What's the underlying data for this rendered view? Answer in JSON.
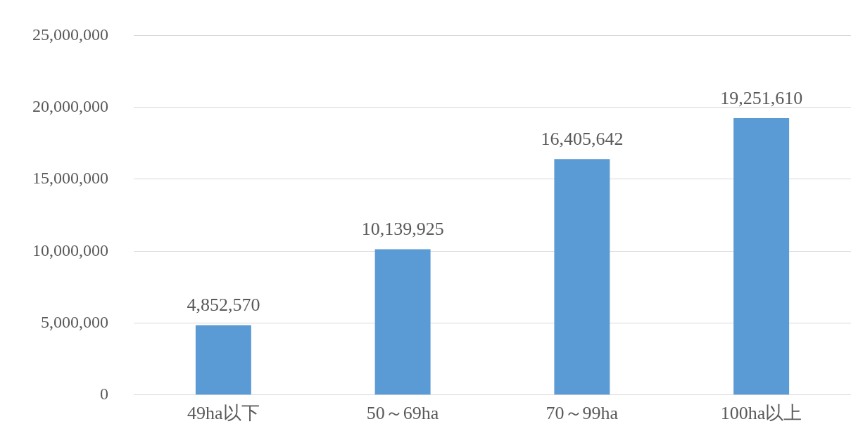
{
  "chart_data": {
    "type": "bar",
    "categories": [
      "49ha以下",
      "50～69ha",
      "70～99ha",
      "100ha以上"
    ],
    "values": [
      4852570,
      10139925,
      16405642,
      19251610
    ],
    "value_labels": [
      "4,852,570",
      "10,139,925",
      "16,405,642",
      "19,251,610"
    ],
    "color": "#5b9bd5",
    "ylim": [
      0,
      25000000
    ],
    "yticks": [
      {
        "value": 0,
        "label": "0"
      },
      {
        "value": 5000000,
        "label": "5,000,000"
      },
      {
        "value": 10000000,
        "label": "10,000,000"
      },
      {
        "value": 15000000,
        "label": "15,000,000"
      },
      {
        "value": 20000000,
        "label": "20,000,000"
      },
      {
        "value": 25000000,
        "label": "25,000,000"
      }
    ],
    "grid": "y",
    "legend": false
  }
}
